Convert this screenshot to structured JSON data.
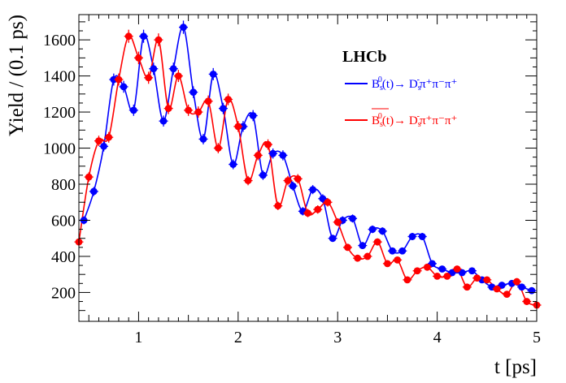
{
  "chart_data": {
    "type": "scatter",
    "title": "",
    "brand_label": "LHCb",
    "xlabel": "t [ps]",
    "ylabel": "Yield / (0.1 ps)",
    "xlim": [
      0.4,
      5.0
    ],
    "ylim": [
      40,
      1740
    ],
    "x_ticks": [
      "1",
      "2",
      "3",
      "4",
      "5"
    ],
    "y_ticks": [
      "200",
      "400",
      "600",
      "800",
      "1000",
      "1200",
      "1400",
      "1600"
    ],
    "grid": false,
    "legend_position": "top-right",
    "series": [
      {
        "name": "Bs0(t)→ Ds−π+π−π+",
        "color": "#0000ff",
        "x": [
          0.45,
          0.55,
          0.65,
          0.75,
          0.85,
          0.95,
          1.05,
          1.15,
          1.25,
          1.35,
          1.45,
          1.55,
          1.65,
          1.75,
          1.85,
          1.95,
          2.05,
          2.15,
          2.25,
          2.35,
          2.45,
          2.55,
          2.65,
          2.75,
          2.85,
          2.95,
          3.05,
          3.15,
          3.25,
          3.35,
          3.45,
          3.55,
          3.65,
          3.75,
          3.85,
          3.95,
          4.05,
          4.15,
          4.25,
          4.35,
          4.45,
          4.55,
          4.65,
          4.75,
          4.85,
          4.95
        ],
        "y": [
          600,
          760,
          1010,
          1380,
          1340,
          1210,
          1620,
          1440,
          1150,
          1440,
          1670,
          1310,
          1050,
          1410,
          1220,
          910,
          1120,
          1180,
          850,
          970,
          960,
          790,
          650,
          770,
          720,
          500,
          600,
          610,
          460,
          550,
          540,
          430,
          430,
          510,
          510,
          360,
          330,
          310,
          310,
          320,
          270,
          230,
          240,
          250,
          230,
          210
        ]
      },
      {
        "name": "Bs0‾(t)→ Ds−π+π−π+",
        "color": "#ff0000",
        "x": [
          0.4,
          0.5,
          0.6,
          0.7,
          0.8,
          0.9,
          1.0,
          1.1,
          1.2,
          1.3,
          1.4,
          1.5,
          1.6,
          1.7,
          1.8,
          1.9,
          2.0,
          2.1,
          2.2,
          2.3,
          2.4,
          2.5,
          2.6,
          2.7,
          2.8,
          2.9,
          3.0,
          3.1,
          3.2,
          3.3,
          3.4,
          3.5,
          3.6,
          3.7,
          3.8,
          3.9,
          4.0,
          4.1,
          4.2,
          4.3,
          4.4,
          4.5,
          4.6,
          4.7,
          4.8,
          4.9,
          5.0
        ],
        "y": [
          480,
          840,
          1040,
          1060,
          1380,
          1620,
          1500,
          1390,
          1600,
          1220,
          1400,
          1210,
          1200,
          1260,
          1000,
          1270,
          1120,
          820,
          960,
          1020,
          680,
          820,
          830,
          640,
          660,
          700,
          590,
          450,
          390,
          400,
          480,
          360,
          380,
          270,
          320,
          340,
          290,
          290,
          330,
          230,
          280,
          270,
          220,
          190,
          260,
          150,
          130
        ]
      }
    ],
    "legend": {
      "entries": [
        {
          "base": "B",
          "sub": "s",
          "sup": "0",
          "arg": "(t)",
          "arrow": "→",
          "decay_base": " D",
          "decay_sub": "s",
          "decay_sup": "-",
          "decay_tail": "π⁺π⁻π⁺",
          "bar": false
        },
        {
          "base": "B",
          "sub": "s",
          "sup": "0",
          "arg": "(t)",
          "arrow": "→",
          "decay_base": " D",
          "decay_sub": "s",
          "decay_sup": "-",
          "decay_tail": "π⁺π⁻π⁺",
          "bar": true
        }
      ]
    }
  }
}
